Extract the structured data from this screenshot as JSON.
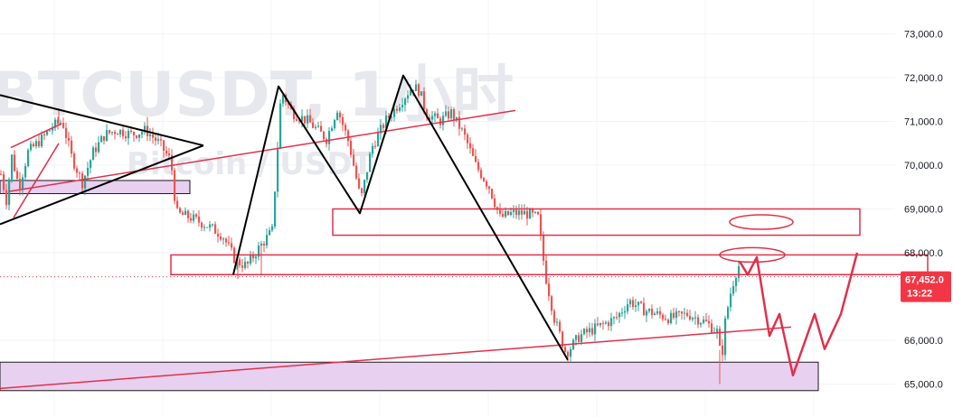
{
  "watermark": {
    "symbol": "BTCUSDT, 1小时",
    "sub": "Bitcoin / USDT"
  },
  "price_badge": {
    "price": "67,452.0",
    "countdown": "13:22",
    "color": "#f23645"
  },
  "colors": {
    "up": "#26a69a",
    "down": "#ef5350",
    "trend": "#e0314b",
    "zone_fill": "#e8d0f0",
    "pattern": "#000000",
    "axis_text": "#131722"
  },
  "chart_data": {
    "type": "candlestick",
    "y_axis": {
      "ticks": [
        "73,000.0",
        "72,000.0",
        "71,000.0",
        "70,000.0",
        "69,000.0",
        "68,000.0",
        "66,000.0",
        "65,000.0"
      ],
      "tick_values": [
        73000,
        72000,
        71000,
        70000,
        69000,
        68000,
        66000,
        65000
      ],
      "range": [
        64700,
        73400
      ]
    },
    "last_price": 67452,
    "path": [
      [
        0,
        69800
      ],
      [
        6,
        69200
      ],
      [
        12,
        70200
      ],
      [
        20,
        69500
      ],
      [
        30,
        70300
      ],
      [
        45,
        70600
      ],
      [
        58,
        70900
      ],
      [
        68,
        71000
      ],
      [
        78,
        70200
      ],
      [
        90,
        69600
      ],
      [
        102,
        70300
      ],
      [
        115,
        70700
      ],
      [
        128,
        70800
      ],
      [
        145,
        70700
      ],
      [
        160,
        70800
      ],
      [
        175,
        70500
      ],
      [
        188,
        70100
      ],
      [
        194,
        68900
      ],
      [
        210,
        68800
      ],
      [
        230,
        68600
      ],
      [
        245,
        68400
      ],
      [
        260,
        67800
      ],
      [
        272,
        67700
      ],
      [
        285,
        68100
      ],
      [
        300,
        68500
      ],
      [
        310,
        71700
      ],
      [
        322,
        71200
      ],
      [
        340,
        71000
      ],
      [
        360,
        70600
      ],
      [
        372,
        71300
      ],
      [
        385,
        70500
      ],
      [
        398,
        69200
      ],
      [
        410,
        70400
      ],
      [
        425,
        71000
      ],
      [
        440,
        71400
      ],
      [
        455,
        71800
      ],
      [
        463,
        71700
      ],
      [
        470,
        71200
      ],
      [
        485,
        71000
      ],
      [
        498,
        71200
      ],
      [
        512,
        70700
      ],
      [
        525,
        70000
      ],
      [
        540,
        69500
      ],
      [
        552,
        68800
      ],
      [
        565,
        68900
      ],
      [
        580,
        68900
      ],
      [
        594,
        68800
      ],
      [
        602,
        67500
      ],
      [
        612,
        66500
      ],
      [
        625,
        65700
      ],
      [
        640,
        66100
      ],
      [
        660,
        66300
      ],
      [
        680,
        66500
      ],
      [
        695,
        66900
      ],
      [
        710,
        66700
      ],
      [
        725,
        66600
      ],
      [
        740,
        66500
      ],
      [
        760,
        66600
      ],
      [
        780,
        66400
      ],
      [
        792,
        66200
      ],
      [
        797,
        65500
      ],
      [
        800,
        66300
      ],
      [
        806,
        67000
      ],
      [
        812,
        67500
      ],
      [
        818,
        67800
      ]
    ],
    "spikes": [
      [
        795,
        65000
      ],
      [
        262,
        67400
      ],
      [
        288,
        67500
      ],
      [
        64,
        71300
      ],
      [
        162,
        71100
      ]
    ],
    "zones": [
      {
        "name": "support-band",
        "from": 64850,
        "to": 65500,
        "x_start": 0,
        "x_end": 905
      },
      {
        "name": "left-box",
        "from": 69350,
        "to": 69650,
        "x_start": 0,
        "x_end": 210
      }
    ],
    "boxes": [
      {
        "name": "resistance-box",
        "from": 68400,
        "to": 69000,
        "x_start": 368,
        "x_end": 951
      },
      {
        "name": "mid-box",
        "from": 67500,
        "to": 67950,
        "x_start": 189,
        "x_end": 1026
      }
    ],
    "ellipses": [
      {
        "name": "ellipse-upper",
        "cx": 842,
        "price": 68700,
        "rx": 35,
        "ry": 8
      },
      {
        "name": "ellipse-lower",
        "cx": 832,
        "price": 67950,
        "rx": 36,
        "ry": 8
      }
    ],
    "trendlines": [
      {
        "name": "long-support-line",
        "color": "#e0314b",
        "points": [
          [
            0,
            64900
          ],
          [
            875,
            66300
          ]
        ]
      },
      {
        "name": "rising-red-line",
        "color": "#e0314b",
        "points": [
          [
            10,
            69400
          ],
          [
            570,
            71250
          ]
        ]
      },
      {
        "name": "short-red-line-1",
        "color": "#e0314b",
        "points": [
          [
            12,
            70400
          ],
          [
            68,
            70950
          ]
        ]
      },
      {
        "name": "short-red-line-2",
        "color": "#e0314b",
        "points": [
          [
            15,
            68800
          ],
          [
            65,
            70500
          ]
        ]
      },
      {
        "name": "triangle-top",
        "color": "#000000",
        "points": [
          [
            0,
            71600
          ],
          [
            225,
            70450
          ]
        ]
      },
      {
        "name": "triangle-bottom",
        "color": "#000000",
        "points": [
          [
            0,
            68650
          ],
          [
            225,
            70450
          ]
        ]
      },
      {
        "name": "zigzag-swing",
        "color": "#000000",
        "points": [
          [
            258,
            67500
          ],
          [
            308,
            71800
          ],
          [
            398,
            68900
          ],
          [
            446,
            72050
          ],
          [
            628,
            65550
          ]
        ]
      },
      {
        "name": "projection-path",
        "color": "#e0314b",
        "points": [
          [
            818,
            67800
          ],
          [
            827,
            67500
          ],
          [
            837,
            67900
          ],
          [
            851,
            66100
          ],
          [
            862,
            66600
          ],
          [
            877,
            65200
          ],
          [
            901,
            66600
          ],
          [
            912,
            65800
          ],
          [
            930,
            66600
          ],
          [
            948,
            68000
          ]
        ]
      }
    ]
  }
}
